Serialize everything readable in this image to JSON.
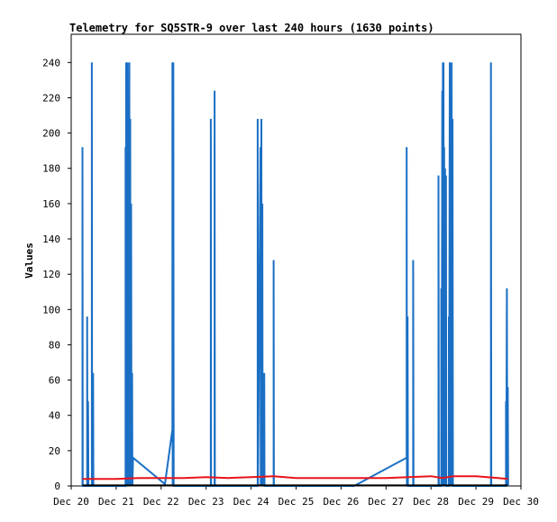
{
  "chart_data": {
    "type": "line",
    "title": "Telemetry for SQ5STR-9 over last 240 hours (1630 points)",
    "xlabel": "",
    "ylabel": "Values",
    "x_ticks": [
      "Dec 20",
      "Dec 21",
      "Dec 22",
      "Dec 23",
      "Dec 24",
      "Dec 25",
      "Dec 26",
      "Dec 27",
      "Dec 28",
      "Dec 29",
      "Dec 30"
    ],
    "y_ticks": [
      0,
      20,
      40,
      60,
      80,
      100,
      120,
      140,
      160,
      180,
      200,
      220,
      240
    ],
    "xlim": [
      "2023-12-20",
      "2023-12-30"
    ],
    "ylim": [
      0,
      256
    ],
    "grid": false,
    "legend": "none",
    "series": [
      {
        "color": "#1a6fc4",
        "points": [
          [
            "2023-12-20T06:00",
            0
          ],
          [
            "2023-12-20T06:00",
            192
          ],
          [
            "2023-12-20T06:10",
            0
          ],
          [
            "2023-12-20T08:30",
            0
          ],
          [
            "2023-12-20T08:30",
            96
          ],
          [
            "2023-12-20T08:40",
            0
          ],
          [
            "2023-12-20T09:00",
            48
          ],
          [
            "2023-12-20T09:10",
            0
          ],
          [
            "2023-12-20T11:00",
            0
          ],
          [
            "2023-12-20T11:00",
            240
          ],
          [
            "2023-12-20T11:10",
            0
          ],
          [
            "2023-12-20T11:40",
            64
          ],
          [
            "2023-12-20T11:50",
            0
          ],
          [
            "2023-12-21T05:00",
            0
          ],
          [
            "2023-12-21T05:00",
            192
          ],
          [
            "2023-12-21T05:10",
            0
          ],
          [
            "2023-12-21T05:20",
            240
          ],
          [
            "2023-12-21T05:30",
            0
          ],
          [
            "2023-12-21T05:40",
            192
          ],
          [
            "2023-12-21T05:50",
            0
          ],
          [
            "2023-12-21T06:00",
            240
          ],
          [
            "2023-12-21T06:10",
            0
          ],
          [
            "2023-12-21T06:30",
            176
          ],
          [
            "2023-12-21T06:40",
            0
          ],
          [
            "2023-12-21T07:00",
            240
          ],
          [
            "2023-12-21T07:10",
            0
          ],
          [
            "2023-12-21T07:30",
            208
          ],
          [
            "2023-12-21T07:40",
            0
          ],
          [
            "2023-12-21T08:00",
            160
          ],
          [
            "2023-12-21T08:10",
            0
          ],
          [
            "2023-12-21T08:30",
            64
          ],
          [
            "2023-12-21T08:40",
            0
          ],
          [
            "2023-12-21T09:00",
            16
          ],
          [
            "2023-12-22T02:00",
            1
          ],
          [
            "2023-12-22T06:00",
            32
          ],
          [
            "2023-12-22T06:00",
            240
          ],
          [
            "2023-12-22T06:10",
            0
          ],
          [
            "2023-12-22T06:30",
            240
          ],
          [
            "2023-12-22T06:40",
            0
          ],
          [
            "2023-12-23T02:30",
            0
          ],
          [
            "2023-12-23T02:30",
            208
          ],
          [
            "2023-12-23T02:40",
            0
          ],
          [
            "2023-12-23T04:30",
            0
          ],
          [
            "2023-12-23T04:30",
            224
          ],
          [
            "2023-12-23T04:40",
            0
          ],
          [
            "2023-12-24T03:30",
            0
          ],
          [
            "2023-12-24T03:30",
            208
          ],
          [
            "2023-12-24T03:40",
            0
          ],
          [
            "2023-12-24T05:00",
            192
          ],
          [
            "2023-12-24T05:10",
            0
          ],
          [
            "2023-12-24T05:30",
            208
          ],
          [
            "2023-12-24T05:40",
            0
          ],
          [
            "2023-12-24T06:00",
            160
          ],
          [
            "2023-12-24T06:10",
            0
          ],
          [
            "2023-12-24T07:00",
            64
          ],
          [
            "2023-12-24T07:10",
            0
          ],
          [
            "2023-12-24T12:00",
            0
          ],
          [
            "2023-12-24T12:00",
            128
          ],
          [
            "2023-12-24T12:10",
            0
          ],
          [
            "2023-12-26T07:00",
            0
          ],
          [
            "2023-12-27T11:00",
            16
          ],
          [
            "2023-12-27T11:00",
            192
          ],
          [
            "2023-12-27T11:10",
            0
          ],
          [
            "2023-12-27T11:30",
            96
          ],
          [
            "2023-12-27T11:40",
            0
          ],
          [
            "2023-12-27T14:30",
            0
          ],
          [
            "2023-12-27T14:30",
            128
          ],
          [
            "2023-12-27T14:40",
            0
          ],
          [
            "2023-12-28T04:00",
            0
          ],
          [
            "2023-12-28T04:00",
            176
          ],
          [
            "2023-12-28T04:10",
            0
          ],
          [
            "2023-12-28T05:30",
            0
          ],
          [
            "2023-12-28T05:30",
            112
          ],
          [
            "2023-12-28T05:40",
            0
          ],
          [
            "2023-12-28T06:00",
            224
          ],
          [
            "2023-12-28T06:10",
            0
          ],
          [
            "2023-12-28T06:20",
            240
          ],
          [
            "2023-12-28T06:30",
            0
          ],
          [
            "2023-12-28T06:40",
            240
          ],
          [
            "2023-12-28T06:50",
            0
          ],
          [
            "2023-12-28T07:00",
            192
          ],
          [
            "2023-12-28T07:10",
            0
          ],
          [
            "2023-12-28T07:30",
            180
          ],
          [
            "2023-12-28T07:40",
            0
          ],
          [
            "2023-12-28T08:00",
            176
          ],
          [
            "2023-12-28T08:10",
            0
          ],
          [
            "2023-12-28T09:30",
            0
          ],
          [
            "2023-12-28T09:30",
            96
          ],
          [
            "2023-12-28T09:40",
            0
          ],
          [
            "2023-12-28T10:00",
            240
          ],
          [
            "2023-12-28T10:10",
            0
          ],
          [
            "2023-12-28T10:30",
            160
          ],
          [
            "2023-12-28T10:40",
            0
          ],
          [
            "2023-12-28T11:00",
            240
          ],
          [
            "2023-12-28T11:10",
            0
          ],
          [
            "2023-12-28T11:30",
            208
          ],
          [
            "2023-12-28T11:40",
            0
          ],
          [
            "2023-12-29T08:00",
            0
          ],
          [
            "2023-12-29T08:00",
            240
          ],
          [
            "2023-12-29T08:10",
            0
          ],
          [
            "2023-12-29T16:00",
            0
          ],
          [
            "2023-12-29T16:00",
            48
          ],
          [
            "2023-12-29T16:10",
            0
          ],
          [
            "2023-12-29T16:30",
            112
          ],
          [
            "2023-12-29T16:40",
            0
          ],
          [
            "2023-12-29T17:00",
            56
          ],
          [
            "2023-12-29T17:10",
            0
          ]
        ]
      },
      {
        "color": "#e8141a",
        "points": [
          [
            "2023-12-20T06:00",
            4
          ],
          [
            "2023-12-21T00:00",
            4
          ],
          [
            "2023-12-21T12:00",
            4.5
          ],
          [
            "2023-12-22T12:00",
            4.5
          ],
          [
            "2023-12-23T00:00",
            5
          ],
          [
            "2023-12-23T12:00",
            4.5
          ],
          [
            "2023-12-24T00:00",
            5
          ],
          [
            "2023-12-24T12:00",
            5.5
          ],
          [
            "2023-12-25T00:00",
            4.5
          ],
          [
            "2023-12-25T12:00",
            4.5
          ],
          [
            "2023-12-26T12:00",
            4.5
          ],
          [
            "2023-12-27T00:00",
            4.5
          ],
          [
            "2023-12-27T12:00",
            5
          ],
          [
            "2023-12-28T00:00",
            5.5
          ],
          [
            "2023-12-28T06:00",
            4.5
          ],
          [
            "2023-12-28T12:00",
            5.5
          ],
          [
            "2023-12-29T00:00",
            5.5
          ],
          [
            "2023-12-29T12:00",
            4.5
          ],
          [
            "2023-12-29T17:00",
            4
          ]
        ]
      },
      {
        "color": "#000000",
        "points": [
          [
            "2023-12-20T06:00",
            0.3
          ],
          [
            "2023-12-29T17:00",
            0.3
          ]
        ]
      }
    ]
  }
}
